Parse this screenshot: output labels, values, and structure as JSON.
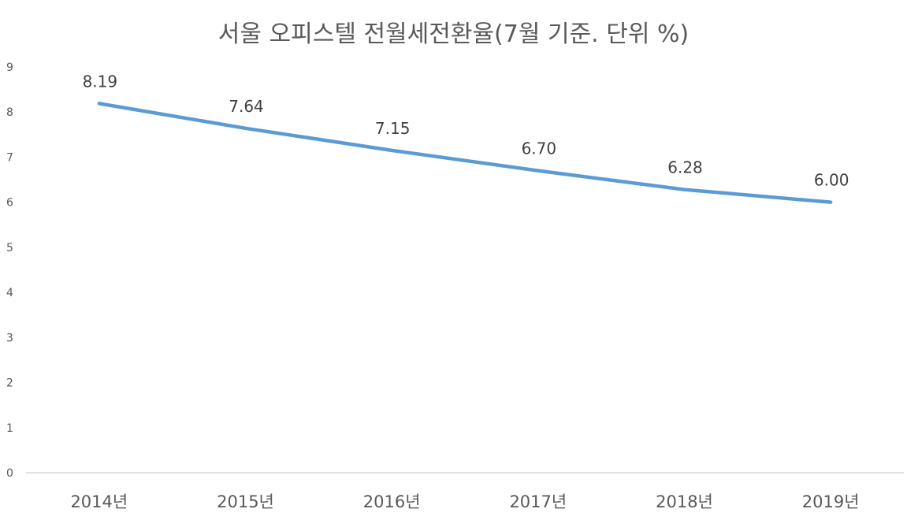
{
  "chart_data": {
    "type": "line",
    "title": "서울 오피스텔 전월세전환율(7월 기준. 단위 %)",
    "xlabel": "",
    "ylabel": "",
    "categories": [
      "2014년",
      "2015년",
      "2016년",
      "2017년",
      "2018년",
      "2019년"
    ],
    "series": [
      {
        "values": [
          8.19,
          7.64,
          7.15,
          6.7,
          6.28,
          6.0
        ],
        "data_labels": [
          "8.19",
          "7.64",
          "7.15",
          "6.70",
          "6.28",
          "6.00"
        ],
        "color": "#5B9BD5"
      }
    ],
    "ylim": [
      0,
      9
    ],
    "yticks": [
      "0",
      "1",
      "2",
      "3",
      "4",
      "5",
      "6",
      "7",
      "8",
      "9"
    ],
    "grid": false,
    "legend": "none",
    "axis_color": "#D9D9D9"
  }
}
